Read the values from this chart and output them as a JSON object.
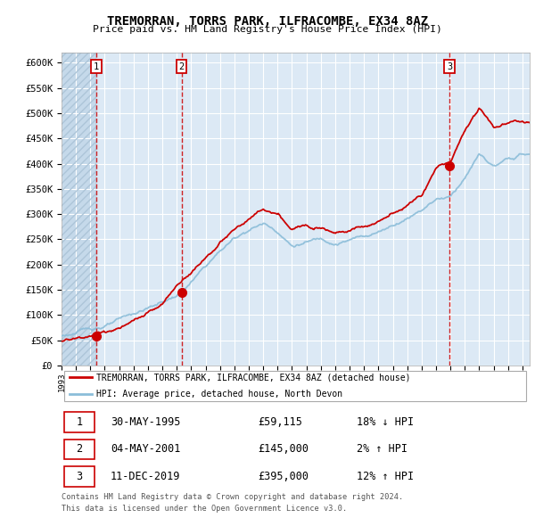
{
  "title": "TREMORRAN, TORRS PARK, ILFRACOMBE, EX34 8AZ",
  "subtitle": "Price paid vs. HM Land Registry's House Price Index (HPI)",
  "ylim": [
    0,
    620000
  ],
  "yticks": [
    0,
    50000,
    100000,
    150000,
    200000,
    250000,
    300000,
    350000,
    400000,
    450000,
    500000,
    550000,
    600000
  ],
  "ytick_labels": [
    "£0",
    "£50K",
    "£100K",
    "£150K",
    "£200K",
    "£250K",
    "£300K",
    "£350K",
    "£400K",
    "£450K",
    "£500K",
    "£550K",
    "£600K"
  ],
  "background_color": "#ffffff",
  "plot_bg_color": "#dce9f5",
  "grid_color": "#ffffff",
  "red_line_color": "#cc0000",
  "blue_line_color": "#8bbdd9",
  "sale_marker_color": "#cc0000",
  "dashed_vline_color": "#cc0000",
  "sales": [
    {
      "label": "1",
      "date_num": 1995.41,
      "price": 59115,
      "date_str": "30-MAY-1995",
      "pct": "18%",
      "dir": "↓"
    },
    {
      "label": "2",
      "date_num": 2001.34,
      "price": 145000,
      "date_str": "04-MAY-2001",
      "pct": "2%",
      "dir": "↑"
    },
    {
      "label": "3",
      "date_num": 2019.94,
      "price": 395000,
      "date_str": "11-DEC-2019",
      "pct": "12%",
      "dir": "↑"
    }
  ],
  "legend_line1": "TREMORRAN, TORRS PARK, ILFRACOMBE, EX34 8AZ (detached house)",
  "legend_line2": "HPI: Average price, detached house, North Devon",
  "footer_line1": "Contains HM Land Registry data © Crown copyright and database right 2024.",
  "footer_line2": "This data is licensed under the Open Government Licence v3.0.",
  "xmin": 1993.0,
  "xmax": 2025.5,
  "hpi_anchors_x": [
    1993,
    1994,
    1995,
    1996,
    1997,
    1998,
    1999,
    2000,
    2001,
    2002,
    2003,
    2004,
    2005,
    2006,
    2007,
    2008,
    2009,
    2010,
    2011,
    2012,
    2013,
    2014,
    2015,
    2016,
    2017,
    2018,
    2019,
    2020,
    2021,
    2022,
    2023,
    2024,
    2025
  ],
  "hpi_anchors_y": [
    58000,
    65000,
    72000,
    80000,
    88000,
    98000,
    110000,
    122000,
    135000,
    160000,
    190000,
    220000,
    245000,
    265000,
    278000,
    265000,
    238000,
    245000,
    252000,
    248000,
    255000,
    262000,
    272000,
    288000,
    305000,
    325000,
    348000,
    355000,
    395000,
    440000,
    415000,
    425000,
    435000
  ],
  "price_anchors_x": [
    1993,
    1994,
    1995,
    1996,
    1997,
    1998,
    1999,
    2000,
    2001,
    2002,
    2003,
    2004,
    2005,
    2006,
    2007,
    2008,
    2009,
    2010,
    2011,
    2012,
    2013,
    2014,
    2015,
    2016,
    2017,
    2018,
    2019,
    2020,
    2021,
    2022,
    2023,
    2024,
    2025
  ],
  "price_anchors_y": [
    48000,
    53000,
    59115,
    66000,
    74000,
    84000,
    96000,
    110000,
    145000,
    175000,
    205000,
    235000,
    258000,
    278000,
    295000,
    282000,
    250000,
    258000,
    264000,
    260000,
    268000,
    276000,
    286000,
    303000,
    322000,
    343000,
    395000,
    410000,
    470000,
    520000,
    485000,
    495000,
    500000
  ]
}
